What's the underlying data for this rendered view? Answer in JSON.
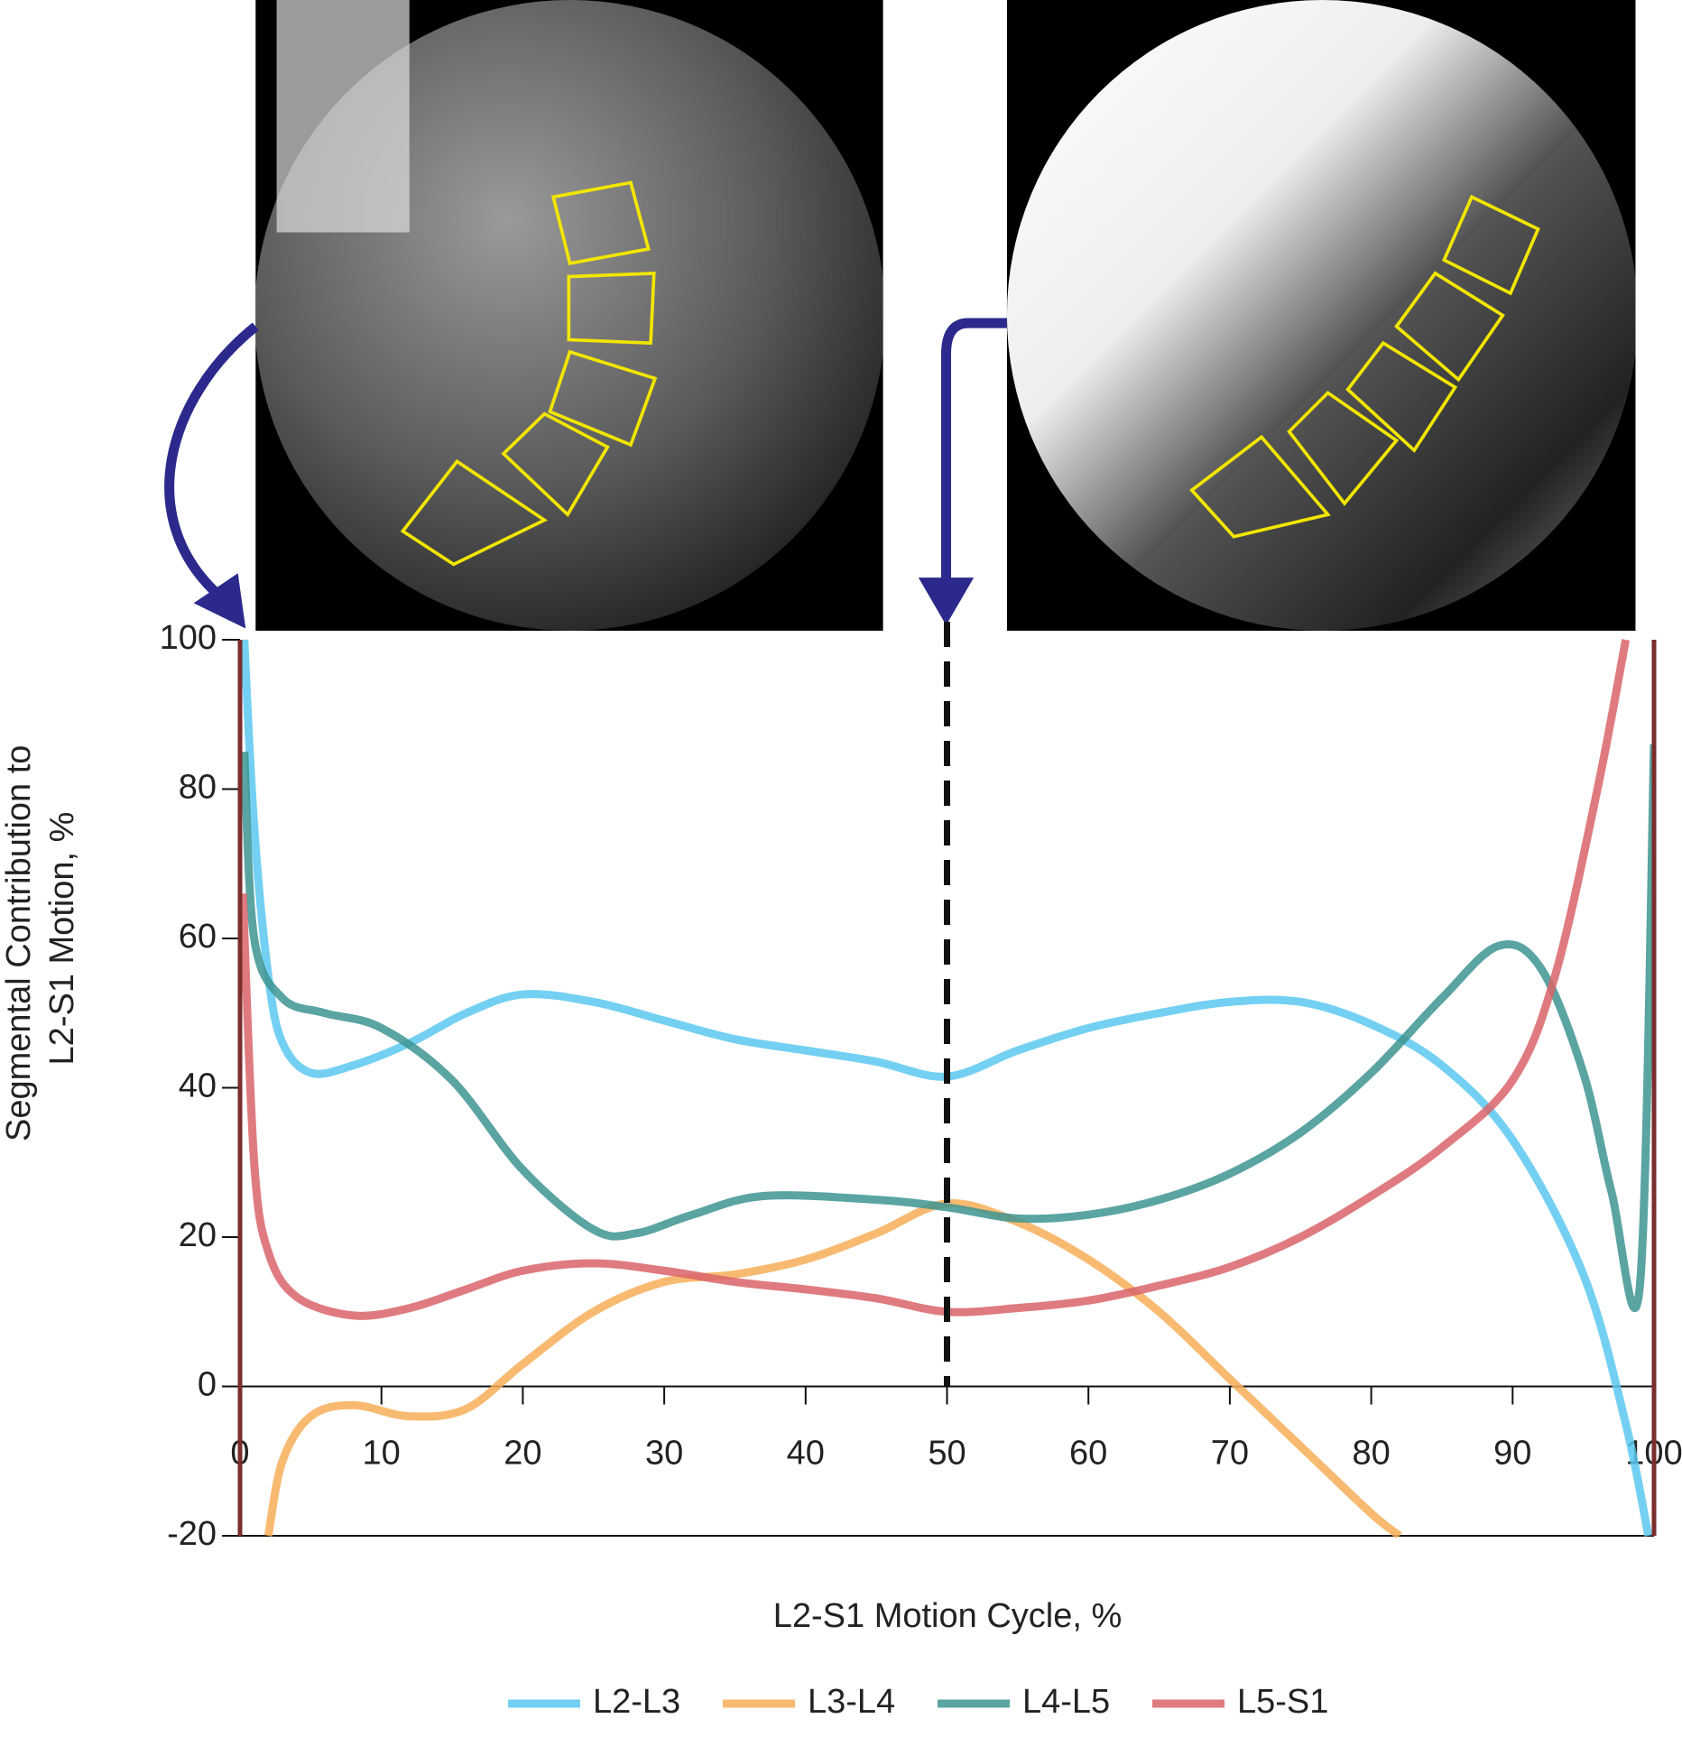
{
  "chart_data": {
    "type": "line",
    "xlabel": "L2-S1 Motion Cycle, %",
    "ylabel": [
      "Segmental Contribution to",
      "L2-S1 Motion, %"
    ],
    "xlim": [
      0,
      100
    ],
    "xticks": [
      0,
      10,
      20,
      30,
      40,
      50,
      60,
      70,
      80,
      90,
      100
    ],
    "ylim": [
      -20,
      100
    ],
    "yticks": [
      -20,
      0,
      20,
      40,
      60,
      80,
      100
    ],
    "marker_x": 50,
    "series": [
      {
        "name": "L2-L3",
        "color": "#5bc8f0",
        "x": [
          0.3,
          1,
          2,
          3,
          5,
          8,
          12,
          16,
          20,
          25,
          30,
          35,
          40,
          45,
          50,
          55,
          60,
          65,
          70,
          75,
          80,
          85,
          90,
          95,
          98,
          99.6
        ],
        "values": [
          100,
          75,
          55,
          46,
          42,
          43,
          46,
          50,
          52.5,
          51.5,
          49,
          46.5,
          45,
          43.5,
          41.5,
          45,
          48,
          50,
          51.5,
          51.5,
          48.5,
          43,
          33,
          15,
          -5,
          -20
        ]
      },
      {
        "name": "L3-L4",
        "color": "#f7ae58",
        "x": [
          2,
          3,
          5,
          8,
          12,
          16,
          20,
          25,
          30,
          35,
          40,
          45,
          50,
          55,
          60,
          65,
          70,
          75,
          80,
          82
        ],
        "values": [
          -20,
          -10,
          -4,
          -2.5,
          -4,
          -3,
          3,
          10,
          14,
          15,
          17,
          20.5,
          24.5,
          22,
          17,
          10,
          1,
          -8,
          -17,
          -20
        ]
      },
      {
        "name": "L4-L5",
        "color": "#3d9490",
        "x": [
          0.3,
          1,
          3,
          6,
          10,
          15,
          20,
          25,
          28,
          32,
          37,
          45,
          50,
          55,
          60,
          65,
          70,
          75,
          80,
          85,
          89,
          92,
          95,
          97,
          99,
          100
        ],
        "values": [
          85,
          60,
          52,
          50,
          48,
          41,
          29,
          21,
          20.5,
          23,
          25.5,
          25,
          24,
          22.5,
          23,
          25,
          28.5,
          34,
          42,
          52,
          59,
          56,
          42,
          26,
          13.5,
          86
        ]
      },
      {
        "name": "L5-S1",
        "color": "#d9646a",
        "x": [
          0.2,
          1,
          2,
          4,
          8,
          12,
          16,
          20,
          25,
          30,
          35,
          40,
          45,
          50,
          55,
          60,
          65,
          70,
          75,
          80,
          85,
          90,
          93,
          96,
          98
        ],
        "values": [
          66,
          30,
          18,
          12,
          9.5,
          10.5,
          13,
          15.5,
          16.5,
          15.5,
          14,
          13,
          11.8,
          10,
          10.5,
          11.5,
          13.5,
          16,
          20,
          25.5,
          32,
          41,
          55,
          80,
          100
        ]
      }
    ]
  }
}
